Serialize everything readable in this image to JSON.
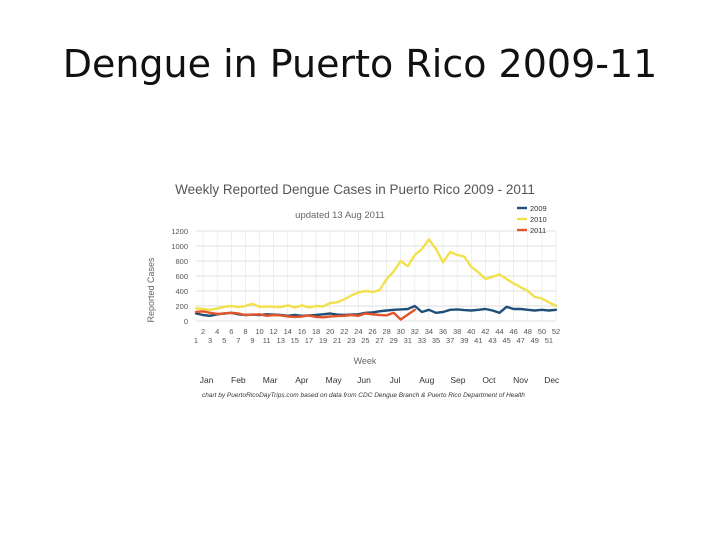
{
  "slide": {
    "title": "Dengue in Puerto Rico 2009-11"
  },
  "chart_data": {
    "type": "line",
    "title": "Weekly Reported Dengue Cases in Puerto Rico 2009 - 2011",
    "subtitle": "updated 13 Aug 2011",
    "xlabel": "Week",
    "ylabel": "Reported Cases",
    "xlim": [
      1,
      52
    ],
    "ylim": [
      0,
      1200
    ],
    "yticks": [
      0,
      200,
      400,
      600,
      800,
      1000,
      1200
    ],
    "xticks_top": [
      2,
      4,
      6,
      8,
      10,
      12,
      14,
      16,
      18,
      20,
      22,
      24,
      26,
      28,
      30,
      32,
      34,
      36,
      38,
      40,
      42,
      44,
      46,
      48,
      50,
      52
    ],
    "xticks_bottom": [
      1,
      3,
      5,
      7,
      9,
      11,
      13,
      15,
      17,
      19,
      21,
      23,
      25,
      27,
      29,
      31,
      33,
      35,
      37,
      39,
      41,
      43,
      45,
      47,
      49,
      51
    ],
    "months": [
      {
        "label": "Jan",
        "week": 2.5
      },
      {
        "label": "Feb",
        "week": 7
      },
      {
        "label": "Mar",
        "week": 11.5
      },
      {
        "label": "Apr",
        "week": 16
      },
      {
        "label": "May",
        "week": 20.5
      },
      {
        "label": "Jun",
        "week": 24.8
      },
      {
        "label": "Jul",
        "week": 29.2
      },
      {
        "label": "Aug",
        "week": 33.7
      },
      {
        "label": "Sep",
        "week": 38.1
      },
      {
        "label": "Oct",
        "week": 42.5
      },
      {
        "label": "Nov",
        "week": 47
      },
      {
        "label": "Dec",
        "week": 51.4
      }
    ],
    "grid": true,
    "legend_position": "top-right",
    "series": [
      {
        "name": "2009",
        "color": "#1f4e79",
        "x": [
          1,
          2,
          3,
          4,
          5,
          6,
          7,
          8,
          9,
          10,
          11,
          12,
          13,
          14,
          15,
          16,
          17,
          18,
          19,
          20,
          21,
          22,
          23,
          24,
          25,
          26,
          27,
          28,
          29,
          30,
          31,
          32,
          33,
          34,
          35,
          36,
          37,
          38,
          39,
          40,
          41,
          42,
          43,
          44,
          45,
          46,
          47,
          48,
          49,
          50,
          51,
          52
        ],
        "values": [
          100,
          80,
          70,
          90,
          100,
          110,
          90,
          80,
          85,
          80,
          90,
          85,
          80,
          70,
          80,
          70,
          75,
          80,
          90,
          100,
          85,
          80,
          85,
          90,
          110,
          115,
          130,
          140,
          150,
          155,
          160,
          200,
          120,
          150,
          110,
          120,
          150,
          155,
          145,
          140,
          150,
          160,
          140,
          110,
          190,
          160,
          160,
          150,
          140,
          150,
          140,
          150
        ]
      },
      {
        "name": "2010",
        "color": "#f2e04d",
        "x": [
          1,
          2,
          3,
          4,
          5,
          6,
          7,
          8,
          9,
          10,
          11,
          12,
          13,
          14,
          15,
          16,
          17,
          18,
          19,
          20,
          21,
          22,
          23,
          24,
          25,
          26,
          27,
          28,
          29,
          30,
          31,
          32,
          33,
          34,
          35,
          36,
          37,
          38,
          39,
          40,
          41,
          42,
          43,
          44,
          45,
          46,
          47,
          48,
          49,
          50,
          51,
          52
        ],
        "values": [
          170,
          160,
          150,
          165,
          190,
          200,
          185,
          200,
          230,
          190,
          195,
          190,
          185,
          210,
          180,
          210,
          180,
          200,
          195,
          240,
          250,
          290,
          340,
          380,
          400,
          390,
          410,
          560,
          660,
          800,
          730,
          880,
          960,
          1090,
          960,
          780,
          920,
          880,
          860,
          720,
          650,
          560,
          590,
          620,
          560,
          500,
          450,
          400,
          320,
          300,
          250,
          200
        ]
      },
      {
        "name": "2011",
        "color": "#e2552b",
        "x": [
          1,
          2,
          3,
          4,
          5,
          6,
          7,
          8,
          9,
          10,
          11,
          12,
          13,
          14,
          15,
          16,
          17,
          18,
          19,
          20,
          21,
          22,
          23,
          24,
          25,
          26,
          27,
          28,
          29,
          30,
          31,
          32
        ],
        "values": [
          120,
          130,
          110,
          95,
          100,
          110,
          100,
          80,
          85,
          90,
          70,
          80,
          75,
          60,
          55,
          60,
          75,
          55,
          50,
          60,
          65,
          70,
          80,
          70,
          100,
          90,
          80,
          75,
          110,
          20,
          85,
          150
        ]
      }
    ],
    "source_note": "chart by PuertoRicoDayTrips.com based on data from CDC Dengue Branch & Puerto Rico Department of Health"
  }
}
